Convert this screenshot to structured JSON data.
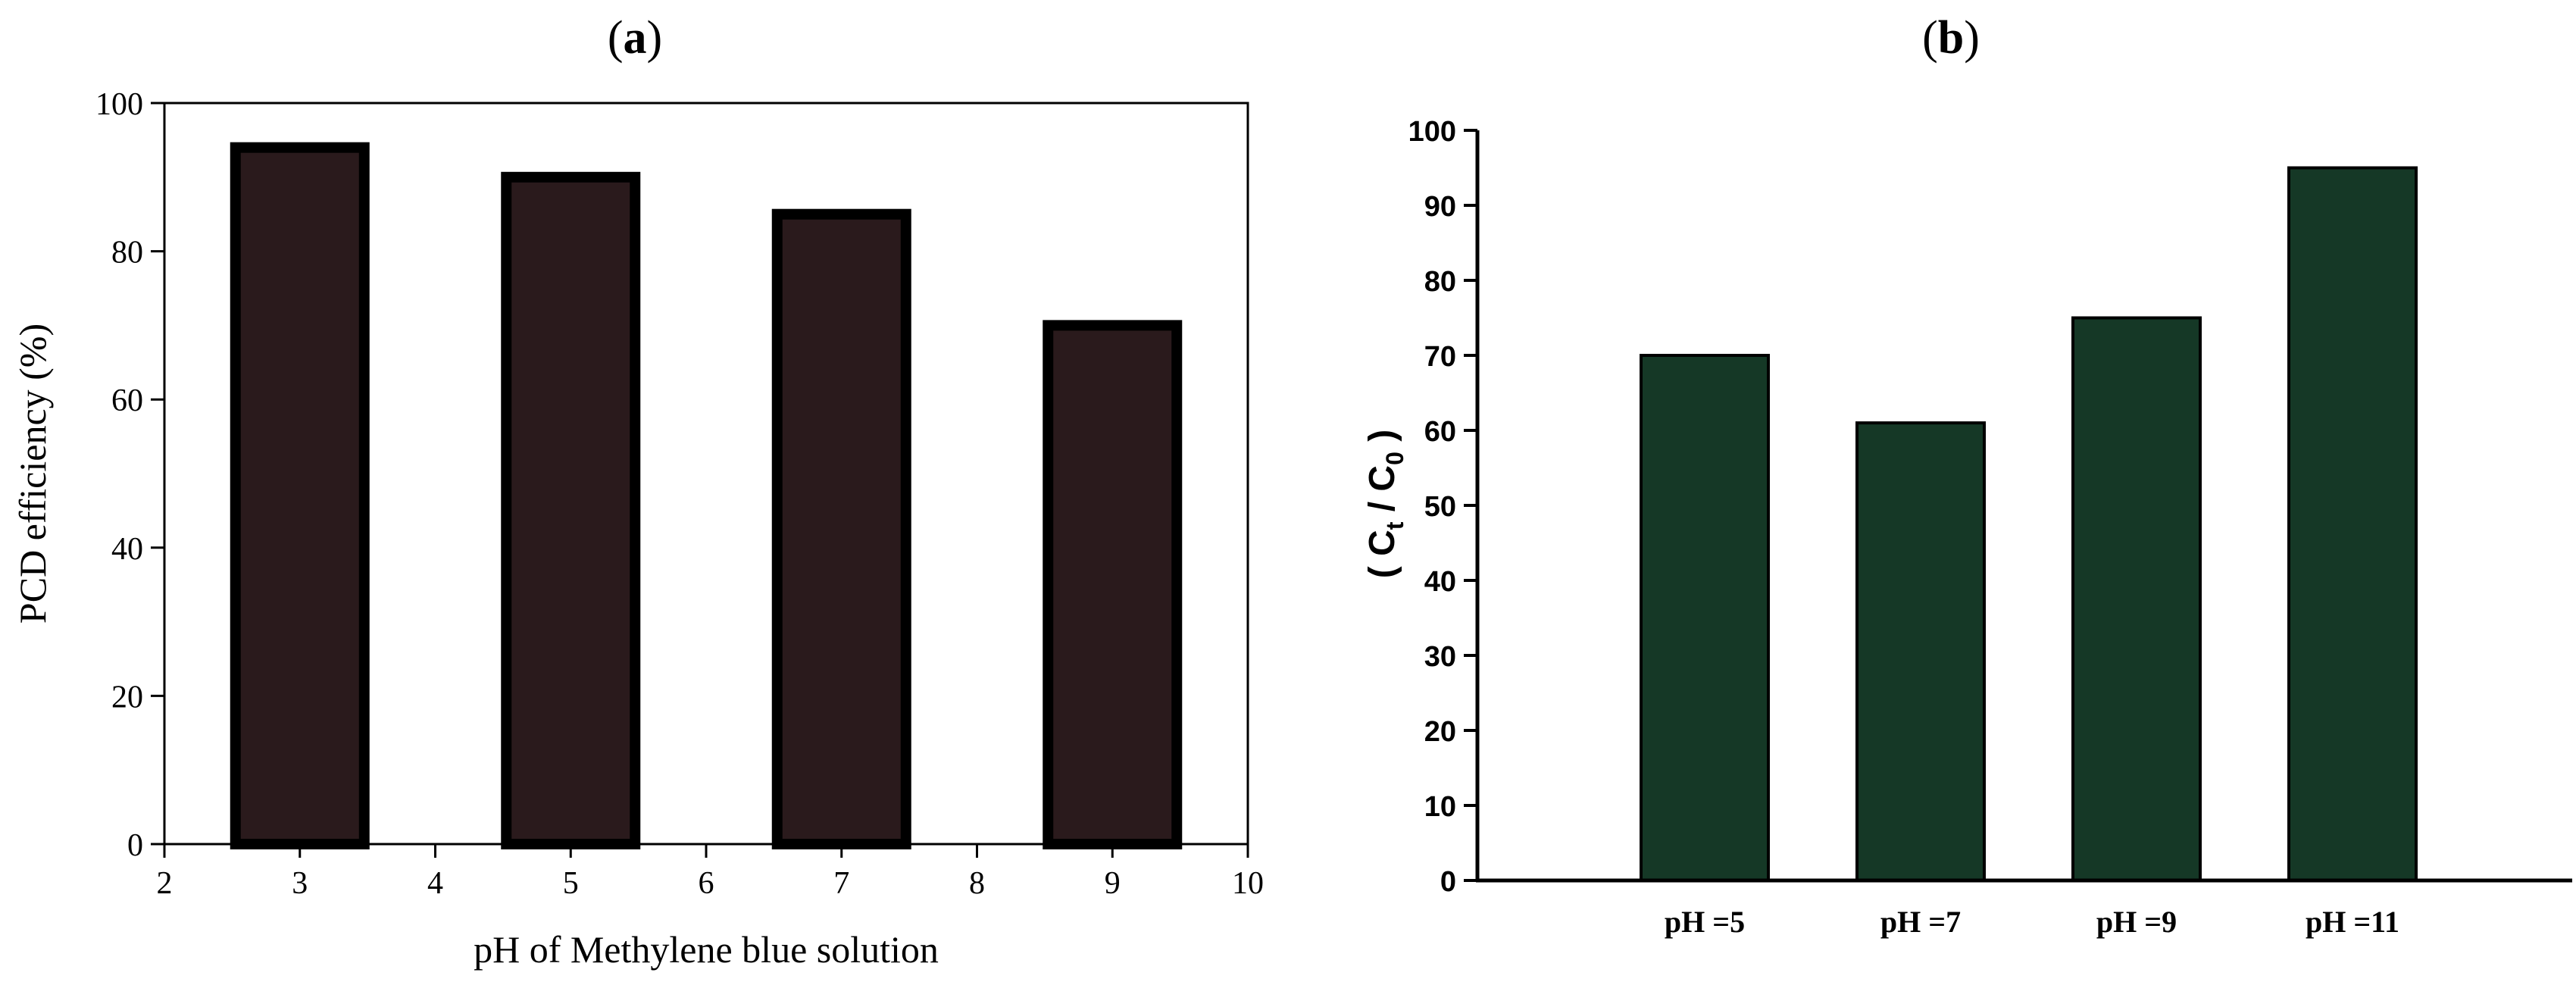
{
  "panels": [
    {
      "label": "a"
    },
    {
      "label": "b"
    }
  ],
  "chart_data": [
    {
      "type": "bar",
      "x": [
        3,
        5,
        7,
        9
      ],
      "values": [
        94,
        90,
        85,
        70
      ],
      "xlabel": "pH of Methylene blue solution",
      "ylabel": "PCD efficiency (%)",
      "xlim": [
        2,
        10
      ],
      "ylim": [
        0,
        100
      ],
      "xticks": [
        2,
        3,
        4,
        5,
        6,
        7,
        8,
        9,
        10
      ],
      "yticks": [
        0,
        20,
        40,
        60,
        80,
        100
      ],
      "bar_color": "#2a1a1c",
      "edge_color": "#000000",
      "grid": false
    },
    {
      "type": "bar",
      "categories": [
        "pH =5",
        "pH =7",
        "pH =9",
        "pH =11"
      ],
      "values": [
        70,
        61,
        75,
        95
      ],
      "ylabel_parts": {
        "open": "( ",
        "c1": "C",
        "sub1": "t",
        "mid": " / ",
        "c2": "C",
        "sub2": "0",
        "close": " )"
      },
      "ylim": [
        0,
        100
      ],
      "yticks": [
        0,
        10,
        20,
        30,
        40,
        50,
        60,
        70,
        80,
        90,
        100
      ],
      "bar_color": "#153826",
      "edge_color": "#000000",
      "grid": false
    }
  ]
}
